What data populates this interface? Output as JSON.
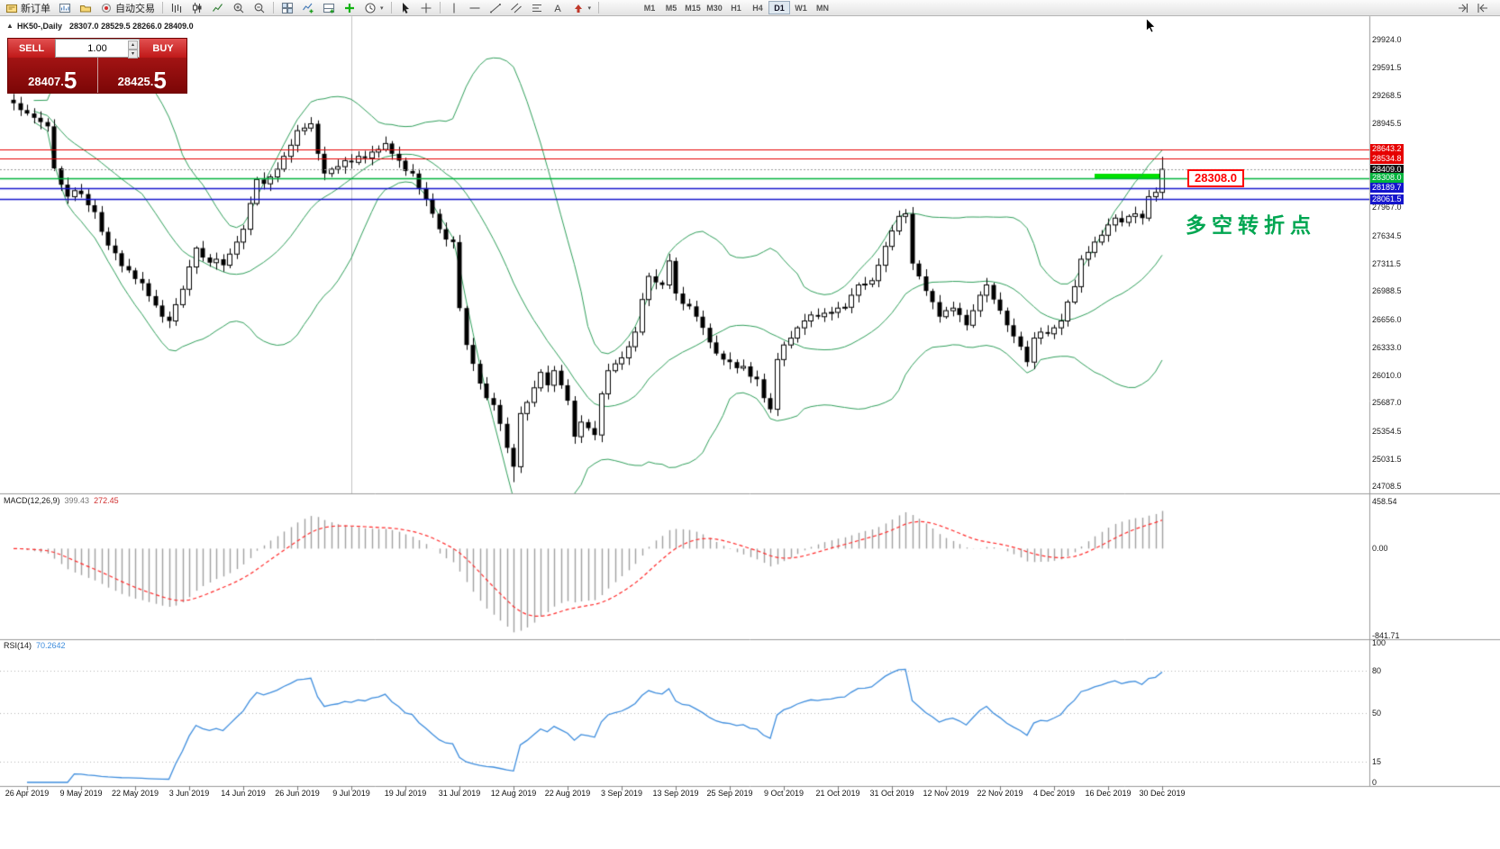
{
  "glyphs": {
    "collapse": "▲",
    "spin_up": "▴",
    "spin_down": "▾",
    "caret_down": "▾"
  },
  "toolbar": {
    "buttons": [
      {
        "name": "new-order",
        "icon": "ticket",
        "label": "新订单"
      },
      {
        "name": "new-chart",
        "icon": "chart-window"
      },
      {
        "name": "profiles",
        "icon": "profiles"
      },
      {
        "name": "autotrading",
        "icon": "power",
        "label": "自动交易"
      },
      {
        "sep": true
      },
      {
        "name": "bar-chart-mode",
        "icon": "bars"
      },
      {
        "name": "candlestick-mode",
        "icon": "candle"
      },
      {
        "name": "line-chart-mode",
        "icon": "linechart"
      },
      {
        "name": "zoom-in",
        "icon": "zoom-in"
      },
      {
        "name": "zoom-out",
        "icon": "zoom-out"
      },
      {
        "sep": true
      },
      {
        "name": "tile-windows",
        "icon": "tiles"
      },
      {
        "name": "indicators",
        "icon": "indicator-add"
      },
      {
        "name": "indicator-window",
        "icon": "window-add"
      },
      {
        "name": "add-indicator",
        "icon": "plus-green"
      },
      {
        "name": "period-menu",
        "icon": "clock",
        "caret": true
      },
      {
        "sep": true
      },
      {
        "name": "cursor-tool",
        "icon": "cursor"
      },
      {
        "name": "crosshair-tool",
        "icon": "crosshair"
      },
      {
        "sep": true
      },
      {
        "name": "vertical-line-tool",
        "icon": "vline"
      },
      {
        "name": "horizontal-line-tool",
        "icon": "hline"
      },
      {
        "name": "trendline-tool",
        "icon": "trend"
      },
      {
        "name": "channel-tool",
        "icon": "channel"
      },
      {
        "name": "fibonacci-tool",
        "icon": "fibo"
      },
      {
        "name": "text-tool",
        "icon": "textA"
      },
      {
        "name": "arrow-tool",
        "icon": "arrowT",
        "caret": true
      },
      {
        "sep": true
      }
    ],
    "timeframes": [
      "M1",
      "M5",
      "M15",
      "M30",
      "H1",
      "H4",
      "D1",
      "W1",
      "MN"
    ],
    "active_timeframe": "D1",
    "right_buttons": [
      {
        "name": "chart-shift",
        "icon": "shift"
      },
      {
        "name": "auto-scroll",
        "icon": "scroll"
      }
    ]
  },
  "chart": {
    "title_symbol": "HK50-,Daily",
    "title_ohlc": "28307.0 28529.5 28266.0 28409.0"
  },
  "order_panel": {
    "sell_label": "SELL",
    "buy_label": "BUY",
    "volume": "1.00",
    "sell_price_small": "28407.",
    "sell_price_big": "5",
    "buy_price_small": "28425.",
    "buy_price_big": "5"
  },
  "macd": {
    "name": "MACD(12,26,9)",
    "value_main": "399.43",
    "value_signal": "272.45",
    "axis": [
      {
        "text": "458.54",
        "v": 458.54
      },
      {
        "text": "0.00",
        "v": 0
      },
      {
        "text": "-841.71",
        "v": -841.71
      }
    ]
  },
  "rsi": {
    "name": "RSI(14)",
    "value": "70.2642",
    "axis": [
      {
        "text": "100",
        "v": 100
      },
      {
        "text": "80",
        "v": 80
      },
      {
        "text": "50",
        "v": 50
      },
      {
        "text": "15",
        "v": 15
      },
      {
        "text": "0",
        "v": 0
      }
    ],
    "levels": [
      80,
      50,
      15
    ]
  },
  "price_axis": {
    "labels": [
      {
        "text": "29924.0",
        "price": 29924.0
      },
      {
        "text": "29591.5",
        "price": 29591.5
      },
      {
        "text": "29268.5",
        "price": 29268.5
      },
      {
        "text": "28945.5",
        "price": 28945.5
      },
      {
        "text": "27967.0",
        "price": 27967.0
      },
      {
        "text": "27634.5",
        "price": 27634.5
      },
      {
        "text": "27311.5",
        "price": 27311.5
      },
      {
        "text": "26988.5",
        "price": 26988.5
      },
      {
        "text": "26656.0",
        "price": 26656.0
      },
      {
        "text": "26333.0",
        "price": 26333.0
      },
      {
        "text": "26010.0",
        "price": 26010.0
      },
      {
        "text": "25687.0",
        "price": 25687.0
      },
      {
        "text": "25354.5",
        "price": 25354.5
      },
      {
        "text": "25031.5",
        "price": 25031.5
      },
      {
        "text": "24708.5",
        "price": 24708.5
      }
    ],
    "levels": [
      {
        "text": "28643.2",
        "price": 28643.2,
        "type": "red"
      },
      {
        "text": "28534.8",
        "price": 28534.8,
        "type": "red"
      },
      {
        "text": "28409.0",
        "price": 28409.0,
        "type": "current"
      },
      {
        "text": "28308.0",
        "price": 28308.0,
        "type": "green"
      },
      {
        "text": "28189.7",
        "price": 28189.7,
        "type": "blue"
      },
      {
        "text": "28061.5",
        "price": 28061.5,
        "type": "blue"
      }
    ]
  },
  "time_axis": {
    "labels": [
      {
        "text": "26 Apr 2019",
        "bar": 2
      },
      {
        "text": "9 May 2019",
        "bar": 10
      },
      {
        "text": "22 May 2019",
        "bar": 18
      },
      {
        "text": "3 Jun 2019",
        "bar": 26
      },
      {
        "text": "14 Jun 2019",
        "bar": 34
      },
      {
        "text": "26 Jun 2019",
        "bar": 42
      },
      {
        "text": "9 Jul 2019",
        "bar": 50
      },
      {
        "text": "19 Jul 2019",
        "bar": 58
      },
      {
        "text": "31 Jul 2019",
        "bar": 66
      },
      {
        "text": "12 Aug 2019",
        "bar": 74
      },
      {
        "text": "22 Aug 2019",
        "bar": 82
      },
      {
        "text": "3 Sep 2019",
        "bar": 90
      },
      {
        "text": "13 Sep 2019",
        "bar": 98
      },
      {
        "text": "25 Sep 2019",
        "bar": 106
      },
      {
        "text": "9 Oct 2019",
        "bar": 114
      },
      {
        "text": "21 Oct 2019",
        "bar": 122
      },
      {
        "text": "31 Oct 2019",
        "bar": 130
      },
      {
        "text": "12 Nov 2019",
        "bar": 138
      },
      {
        "text": "22 Nov 2019",
        "bar": 146
      },
      {
        "text": "4 Dec 2019",
        "bar": 154
      },
      {
        "text": "16 Dec 2019",
        "bar": 162
      },
      {
        "text": "30 Dec 2019",
        "bar": 170
      }
    ]
  },
  "annotations": {
    "price_box": "28308.0",
    "turning_point": "多空转折点",
    "highlight": {
      "price": 28330,
      "from_bar": 160,
      "to_bar": 170
    },
    "vertical_line_bar": 50
  },
  "colors": {
    "sell_button": "#cf1f1f",
    "panel_price_bg": "#8e0404",
    "level_red": "#e60000",
    "level_green": "#00b33c",
    "level_blue": "#1414cc",
    "bollinger": "#2f9e5a",
    "macd_histogram": "#a0a0a0",
    "macd_signal": "#ff2a2a",
    "rsi_line": "#3e8ddd",
    "highlight_green": "#00e000",
    "annotation_green": "#00a651",
    "annotation_red": "#ff0000"
  },
  "chart_data": {
    "type": "candlestick",
    "symbol": "HK50",
    "period": "Daily",
    "ohlc_current": {
      "open": 28307.0,
      "high": 28529.5,
      "low": 28266.0,
      "close": 28409.0
    },
    "bid": 28407.5,
    "ask": 28425.5,
    "y_axis_range": [
      24650,
      30090
    ],
    "macd_axis_range": [
      -860,
      500
    ],
    "rsi_axis_range": [
      0,
      100
    ],
    "indicators": {
      "bollinger": {
        "period": 20,
        "deviation": 2
      },
      "macd": {
        "fast": 12,
        "slow": 26,
        "signal": 9,
        "current_main": 399.43,
        "current_signal": 272.45
      },
      "rsi": {
        "period": 14,
        "current": 70.2642
      }
    },
    "closes": [
      29180,
      29100,
      29060,
      29010,
      28960,
      28910,
      28420,
      28230,
      28090,
      28160,
      28120,
      27990,
      27910,
      27680,
      27520,
      27430,
      27280,
      27230,
      27130,
      27080,
      26930,
      26820,
      26690,
      26640,
      26830,
      27010,
      27270,
      27490,
      27380,
      27320,
      27360,
      27290,
      27420,
      27560,
      27710,
      28010,
      28290,
      28240,
      28320,
      28410,
      28560,
      28690,
      28860,
      28890,
      28940,
      28590,
      28360,
      28410,
      28440,
      28510,
      28490,
      28560,
      28540,
      28610,
      28640,
      28710,
      28590,
      28510,
      28390,
      28360,
      28190,
      28060,
      27890,
      27710,
      27590,
      27560,
      26790,
      26360,
      26140,
      25910,
      25740,
      25660,
      25440,
      25160,
      24940,
      25560,
      25690,
      25860,
      26040,
      25890,
      26060,
      25890,
      25710,
      25290,
      25460,
      25390,
      25310,
      25790,
      26060,
      26140,
      26210,
      26340,
      26510,
      26890,
      27160,
      27090,
      27060,
      27340,
      26960,
      26840,
      26810,
      26690,
      26560,
      26390,
      26260,
      26190,
      26160,
      26090,
      26110,
      25990,
      25960,
      25740,
      25610,
      26190,
      26360,
      26440,
      26560,
      26640,
      26710,
      26690,
      26730,
      26740,
      26790,
      26800,
      26940,
      27060,
      27070,
      27110,
      27290,
      27510,
      27690,
      27860,
      27890,
      27310,
      27160,
      26990,
      26860,
      26690,
      26760,
      26790,
      26710,
      26590,
      26760,
      26940,
      27060,
      26890,
      26760,
      26590,
      26460,
      26340,
      26160,
      26440,
      26510,
      26490,
      26560,
      26640,
      26860,
      27040,
      27360,
      27440,
      27560,
      27640,
      27760,
      27840,
      27790,
      27860,
      27890,
      27840,
      28090,
      28140,
      28409
    ]
  }
}
